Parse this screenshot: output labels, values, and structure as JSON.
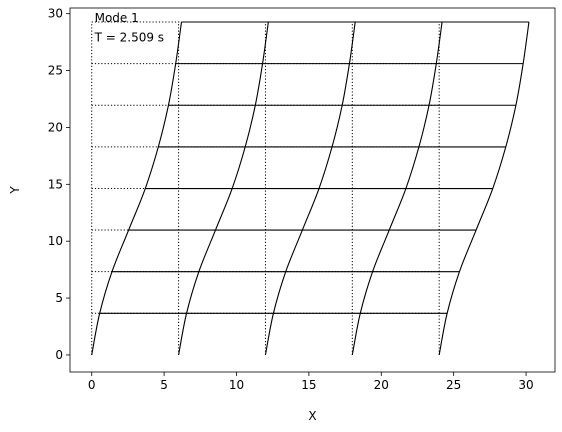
{
  "chart_data": {
    "type": "line",
    "title": "",
    "xlabel": "X",
    "ylabel": "Y",
    "xlim": [
      -1.5,
      32
    ],
    "ylim": [
      -1.5,
      30.5
    ],
    "xticks": [
      0,
      5,
      10,
      15,
      20,
      25,
      30
    ],
    "yticks": [
      0,
      5,
      10,
      15,
      20,
      25,
      30
    ],
    "grid": false,
    "legend": "none",
    "annotations": [
      "Mode 1",
      "T = 2.509 s"
    ],
    "column_x": [
      0,
      6,
      12,
      18,
      24
    ],
    "story_y": [
      0,
      3.66,
      7.32,
      10.98,
      14.63,
      18.29,
      21.95,
      25.61,
      29.27
    ],
    "displacement": [
      0,
      0.55,
      1.4,
      2.55,
      3.7,
      4.6,
      5.3,
      5.8,
      6.2
    ],
    "series": [
      {
        "style": "undeformed-dotted",
        "color": "#000000"
      },
      {
        "style": "deformed-solid",
        "color": "#000000"
      }
    ]
  }
}
